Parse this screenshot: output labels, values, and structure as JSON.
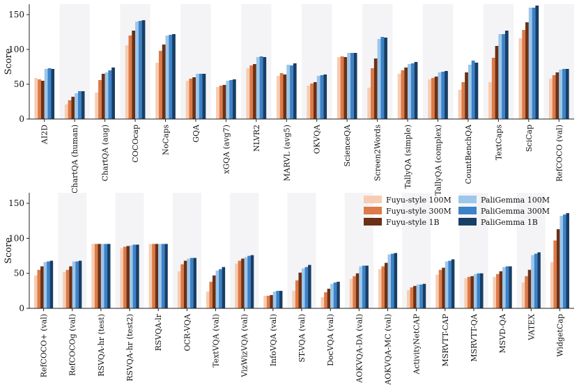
{
  "legend": {
    "placement": "top-right",
    "items": [
      {
        "label": "Fuyu-style 100M",
        "color": "#f6cdb3"
      },
      {
        "label": "Fuyu-style 300M",
        "color": "#dd7a47"
      },
      {
        "label": "Fuyu-style 1B",
        "color": "#6b3015"
      },
      {
        "label": "PaliGemma 100M",
        "color": "#9dc7ea"
      },
      {
        "label": "PaliGemma 300M",
        "color": "#3c82c8"
      },
      {
        "label": "PaliGemma 1B",
        "color": "#173e66"
      }
    ]
  },
  "chart_data": [
    {
      "type": "bar",
      "ylabel": "Score",
      "ylim": [
        0,
        165
      ],
      "yticks": [
        0,
        50,
        100,
        150
      ],
      "categories": [
        "AI2D",
        "ChartQA (human)",
        "ChartQA (aug)",
        "COCOcap",
        "NoCaps",
        "GQA",
        "xGQA (avg7)",
        "NLVR2",
        "MARVL (avg5)",
        "OKVQA",
        "ScienceQA",
        "Screen2Words",
        "TallyQA (simple)",
        "TallyQA (complex)",
        "CountBenchQA",
        "TextCaps",
        "SciCap",
        "RefCOCO (val)"
      ],
      "series": [
        {
          "name": "Fuyu-style 100M",
          "values": [
            59,
            21,
            38,
            106,
            81,
            55,
            46,
            73,
            62,
            48,
            89,
            45,
            65,
            57,
            42,
            53,
            116,
            58
          ]
        },
        {
          "name": "Fuyu-style 300M",
          "values": [
            57,
            27,
            56,
            120,
            98,
            58,
            48,
            77,
            66,
            51,
            90,
            73,
            70,
            59,
            53,
            88,
            128,
            63
          ]
        },
        {
          "name": "Fuyu-style 1B",
          "values": [
            55,
            32,
            65,
            127,
            107,
            60,
            49,
            79,
            64,
            53,
            89,
            87,
            74,
            61,
            67,
            105,
            139,
            67
          ]
        },
        {
          "name": "PaliGemma 100M",
          "values": [
            72,
            37,
            67,
            140,
            120,
            65,
            55,
            89,
            78,
            62,
            95,
            115,
            79,
            67,
            78,
            122,
            160,
            71
          ]
        },
        {
          "name": "PaliGemma 300M",
          "values": [
            73,
            40,
            70,
            141,
            121,
            65,
            56,
            90,
            77,
            63,
            95,
            118,
            80,
            68,
            84,
            122,
            160,
            72
          ]
        },
        {
          "name": "PaliGemma 1B",
          "values": [
            72,
            40,
            74,
            142,
            122,
            65,
            57,
            89,
            80,
            64,
            95,
            117,
            82,
            69,
            81,
            127,
            163,
            72
          ]
        }
      ]
    },
    {
      "type": "bar",
      "ylabel": "Score",
      "ylim": [
        0,
        165
      ],
      "yticks": [
        0,
        50,
        100,
        150
      ],
      "categories": [
        "RefCOCO+ (val)",
        "RefCOCOg (val)",
        "RSVQA-hr (test)",
        "RSVQA-hr (test2)",
        "RSVQA-lr",
        "OCR-VQA",
        "TextVQA (val)",
        "VizWizVQA (val)",
        "InfoVQA (val)",
        "ST-VQA (val)",
        "DocVQA (val)",
        "AOKVQA-DA (val)",
        "AOKVQA-MC (val)",
        "ActivityNetCAP",
        "MSRVTT-CAP",
        "MSRVTT-QA",
        "MSVD-QA",
        "VATEX",
        "WidgetCap"
      ],
      "series": [
        {
          "name": "Fuyu-style 100M",
          "values": [
            47,
            52,
            92,
            86,
            92,
            53,
            24,
            64,
            18,
            25,
            16,
            42,
            56,
            26,
            48,
            43,
            45,
            37,
            66
          ]
        },
        {
          "name": "Fuyu-style 300M",
          "values": [
            55,
            55,
            92,
            88,
            92,
            63,
            38,
            68,
            18,
            40,
            23,
            46,
            60,
            30,
            55,
            45,
            49,
            46,
            97
          ]
        },
        {
          "name": "Fuyu-style 1B",
          "values": [
            60,
            60,
            92,
            89,
            92,
            68,
            47,
            71,
            19,
            51,
            28,
            50,
            65,
            32,
            58,
            46,
            53,
            55,
            113
          ]
        },
        {
          "name": "PaliGemma 100M",
          "values": [
            66,
            67,
            92,
            90,
            92,
            71,
            54,
            73,
            24,
            57,
            35,
            60,
            77,
            34,
            67,
            49,
            59,
            76,
            132
          ]
        },
        {
          "name": "PaliGemma 300M",
          "values": [
            67,
            67,
            92,
            91,
            92,
            72,
            56,
            75,
            25,
            59,
            37,
            61,
            78,
            34,
            68,
            50,
            60,
            78,
            134
          ]
        },
        {
          "name": "PaliGemma 1B",
          "values": [
            68,
            68,
            92,
            91,
            92,
            72,
            59,
            76,
            25,
            62,
            38,
            61,
            79,
            35,
            70,
            50,
            60,
            80,
            136
          ]
        }
      ]
    }
  ]
}
